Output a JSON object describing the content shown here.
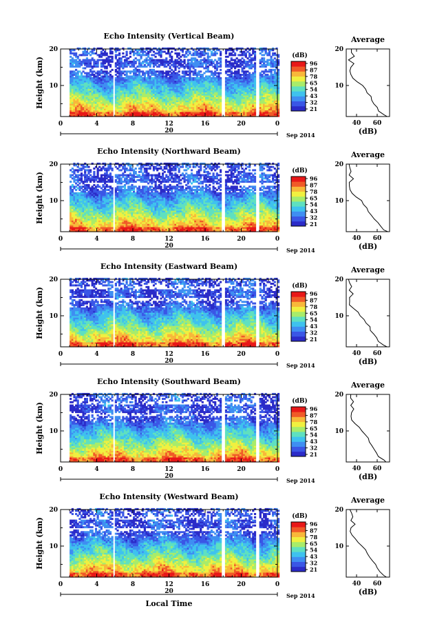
{
  "figure": {
    "common_xlabel": "Local Time",
    "panel_date_axis_label": "20",
    "panel_date_month": "Sep 2014",
    "colorbar_unit": "(dB)",
    "colorbar_ticks": [
      "96",
      "87",
      "78",
      "65",
      "54",
      "43",
      "32",
      "21"
    ],
    "average_title": "Average",
    "average_xlabel": "(dB)",
    "average_xticks": [
      "40",
      "60"
    ],
    "colormap": [
      "#2b2bc8",
      "#3a56e6",
      "#3f8ef2",
      "#3fc2ee",
      "#5fe0c0",
      "#a8ec6a",
      "#f0f040",
      "#f8b83a",
      "#f05a28",
      "#e81818"
    ]
  },
  "chart_data": [
    {
      "type": "heatmap",
      "title": "Echo Intensity (Vertical Beam)",
      "ylabel": "Height (km)",
      "xlabel": "Local Time",
      "x_ticks": [
        "0",
        "4",
        "8",
        "12",
        "16",
        "20",
        "0"
      ],
      "y_ticks": [
        "20",
        "10"
      ],
      "xlim": [
        0,
        24
      ],
      "ylim": [
        1.5,
        20
      ],
      "colorbar": {
        "unit": "(dB)",
        "ticks": [
          96,
          87,
          78,
          65,
          54,
          43,
          32,
          21
        ]
      },
      "data_gaps_hours": [
        [
          0.0,
          1.0
        ],
        [
          5.75,
          6.0
        ],
        [
          17.8,
          18.1
        ],
        [
          21.6,
          21.9
        ]
      ],
      "profile": {
        "title": "Average",
        "xlabel": "(dB)",
        "x_ticks": [
          40,
          60
        ],
        "xlim": [
          30,
          72
        ],
        "heights_km": [
          1.5,
          2,
          3,
          4,
          5,
          6,
          7,
          8,
          9,
          10,
          11,
          12,
          13,
          14,
          15,
          16,
          17,
          18,
          19,
          20
        ],
        "values_db": [
          70,
          66,
          62,
          60,
          57,
          55,
          53,
          51,
          48,
          45,
          41,
          37,
          34,
          33,
          35,
          38,
          33,
          37,
          36,
          34
        ]
      }
    },
    {
      "type": "heatmap",
      "title": "Echo Intensity (Northward Beam)",
      "ylabel": "Height (km)",
      "xlabel": "Local Time",
      "x_ticks": [
        "0",
        "4",
        "8",
        "12",
        "16",
        "20",
        "0"
      ],
      "y_ticks": [
        "20",
        "10"
      ],
      "xlim": [
        0,
        24
      ],
      "ylim": [
        1.5,
        20
      ],
      "colorbar": {
        "unit": "(dB)",
        "ticks": [
          96,
          87,
          78,
          65,
          54,
          43,
          32,
          21
        ]
      },
      "data_gaps_hours": [
        [
          0.0,
          1.0
        ],
        [
          5.75,
          6.0
        ],
        [
          17.8,
          18.1
        ],
        [
          21.6,
          21.9
        ]
      ],
      "profile": {
        "title": "Average",
        "xlabel": "(dB)",
        "x_ticks": [
          40,
          60
        ],
        "xlim": [
          30,
          72
        ],
        "heights_km": [
          1.5,
          2,
          3,
          4,
          5,
          6,
          7,
          8,
          9,
          10,
          11,
          12,
          13,
          14,
          15,
          16,
          17,
          18,
          19,
          20
        ],
        "values_db": [
          70,
          67,
          63,
          60,
          57,
          55,
          52,
          50,
          47,
          44,
          40,
          36,
          33,
          32,
          33,
          36,
          32,
          34,
          33,
          32
        ]
      }
    },
    {
      "type": "heatmap",
      "title": "Echo Intensity (Eastward Beam)",
      "ylabel": "Height (km)",
      "xlabel": "Local Time",
      "x_ticks": [
        "0",
        "4",
        "8",
        "12",
        "16",
        "20",
        "0"
      ],
      "y_ticks": [
        "20",
        "10"
      ],
      "xlim": [
        0,
        24
      ],
      "ylim": [
        1.5,
        20
      ],
      "colorbar": {
        "unit": "(dB)",
        "ticks": [
          96,
          87,
          78,
          65,
          54,
          43,
          32,
          21
        ]
      },
      "data_gaps_hours": [
        [
          0.0,
          1.0
        ],
        [
          5.75,
          6.0
        ],
        [
          17.8,
          18.1
        ],
        [
          21.6,
          21.9
        ]
      ],
      "profile": {
        "title": "Average",
        "xlabel": "(dB)",
        "x_ticks": [
          40,
          60
        ],
        "xlim": [
          30,
          72
        ],
        "heights_km": [
          1.5,
          2,
          3,
          4,
          5,
          6,
          7,
          8,
          9,
          10,
          11,
          12,
          13,
          14,
          15,
          16,
          17,
          18,
          19,
          20
        ],
        "values_db": [
          69,
          66,
          62,
          59,
          57,
          54,
          52,
          50,
          47,
          44,
          41,
          37,
          34,
          33,
          34,
          37,
          33,
          35,
          34,
          33
        ]
      }
    },
    {
      "type": "heatmap",
      "title": "Echo Intensity (Southward Beam)",
      "ylabel": "Height (km)",
      "xlabel": "Local Time",
      "x_ticks": [
        "0",
        "4",
        "8",
        "12",
        "16",
        "20",
        "0"
      ],
      "y_ticks": [
        "20",
        "10"
      ],
      "xlim": [
        0,
        24
      ],
      "ylim": [
        1.5,
        20
      ],
      "colorbar": {
        "unit": "(dB)",
        "ticks": [
          96,
          87,
          78,
          65,
          54,
          43,
          32,
          21
        ]
      },
      "data_gaps_hours": [
        [
          0.0,
          1.0
        ],
        [
          5.75,
          6.0
        ],
        [
          17.8,
          18.1
        ],
        [
          21.6,
          21.9
        ]
      ],
      "profile": {
        "title": "Average",
        "xlabel": "(dB)",
        "x_ticks": [
          40,
          60
        ],
        "xlim": [
          30,
          72
        ],
        "heights_km": [
          1.5,
          2,
          3,
          4,
          5,
          6,
          7,
          8,
          9,
          10,
          11,
          12,
          13,
          14,
          15,
          16,
          17,
          18,
          19,
          20
        ],
        "values_db": [
          69,
          66,
          62,
          60,
          57,
          55,
          53,
          51,
          48,
          45,
          42,
          38,
          35,
          34,
          35,
          38,
          34,
          36,
          35,
          34
        ]
      }
    },
    {
      "type": "heatmap",
      "title": "Echo Intensity (Westward Beam)",
      "ylabel": "Height (km)",
      "xlabel": "Local Time",
      "x_ticks": [
        "0",
        "4",
        "8",
        "12",
        "16",
        "20",
        "0"
      ],
      "y_ticks": [
        "20",
        "10"
      ],
      "xlim": [
        0,
        24
      ],
      "ylim": [
        1.5,
        20
      ],
      "colorbar": {
        "unit": "(dB)",
        "ticks": [
          96,
          87,
          78,
          65,
          54,
          43,
          32,
          21
        ]
      },
      "data_gaps_hours": [
        [
          0.0,
          1.0
        ],
        [
          5.75,
          6.0
        ],
        [
          17.8,
          18.1
        ],
        [
          21.6,
          21.9
        ]
      ],
      "profile": {
        "title": "Average",
        "xlabel": "(dB)",
        "x_ticks": [
          40,
          60
        ],
        "xlim": [
          30,
          72
        ],
        "heights_km": [
          1.5,
          2,
          3,
          4,
          5,
          6,
          7,
          8,
          9,
          10,
          11,
          12,
          13,
          14,
          15,
          16,
          17,
          18,
          19,
          20
        ],
        "values_db": [
          70,
          67,
          63,
          60,
          58,
          56,
          53,
          51,
          48,
          45,
          42,
          38,
          35,
          34,
          35,
          39,
          34,
          36,
          35,
          34
        ]
      }
    }
  ]
}
